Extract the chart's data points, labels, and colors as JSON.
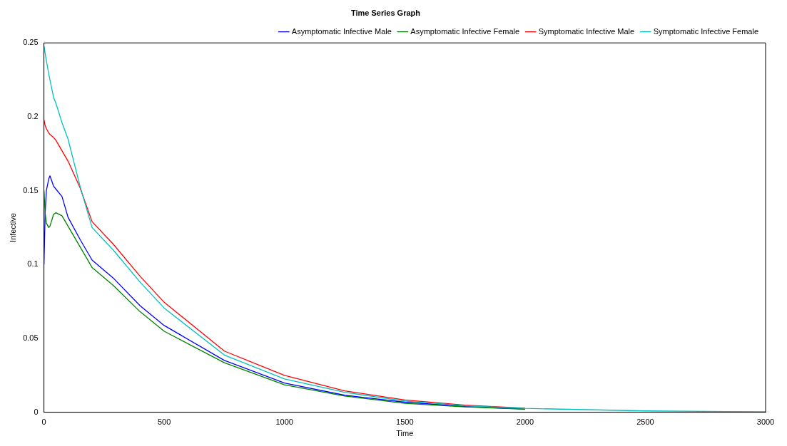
{
  "chart_data": {
    "type": "line",
    "title": "Time Series Graph",
    "xlabel": "Time",
    "ylabel": "Infective",
    "x": [
      0,
      5,
      10,
      20,
      25,
      40,
      50,
      75,
      100,
      150,
      200,
      287,
      400,
      500,
      750,
      1000,
      1250,
      1500,
      1750,
      2000,
      2500,
      3000
    ],
    "series": [
      {
        "name": "Asymptomatic Infective Male",
        "color": "#0000ff",
        "values": [
          0.1,
          0.135,
          0.15,
          0.158,
          0.16,
          0.153,
          0.151,
          0.146,
          0.132,
          0.117,
          0.103,
          0.091,
          0.072,
          0.0587,
          0.0351,
          0.0198,
          0.0115,
          0.0068,
          0.0039,
          0.0022,
          null,
          null
        ]
      },
      {
        "name": "Asymptomatic Infective Female",
        "color": "#008000",
        "values": [
          0.15,
          0.135,
          0.128,
          0.125,
          0.126,
          0.134,
          0.135,
          0.133,
          0.126,
          0.112,
          0.098,
          0.086,
          0.068,
          0.0548,
          0.0335,
          0.0186,
          0.011,
          0.006,
          0.0036,
          0.002,
          null,
          null
        ]
      },
      {
        "name": "Symptomatic Infective Male",
        "color": "#ff0000",
        "values": [
          0.198,
          0.194,
          0.192,
          0.189,
          0.188,
          0.186,
          0.184,
          0.177,
          0.17,
          0.152,
          0.129,
          0.114,
          0.092,
          0.0744,
          0.0414,
          0.0249,
          0.0145,
          0.0083,
          0.0048,
          0.0028,
          null,
          null
        ]
      },
      {
        "name": "Symptomatic Infective Female",
        "color": "#00bfbf",
        "values": [
          0.248,
          0.243,
          0.238,
          0.229,
          0.225,
          0.213,
          0.209,
          0.196,
          0.185,
          0.153,
          0.125,
          0.11,
          0.088,
          0.0705,
          0.0387,
          0.0225,
          0.0135,
          0.0076,
          0.0044,
          0.0026,
          0.0009,
          0.0003
        ]
      }
    ],
    "xlim": [
      0,
      3000
    ],
    "xticks": [
      0,
      500,
      1000,
      1500,
      2000,
      2500,
      3000
    ],
    "ylim": [
      0,
      0.25
    ],
    "yticks": [
      0,
      0.05,
      0.1,
      0.15,
      0.2,
      0.25
    ],
    "grid": false,
    "legend": "top right",
    "marker": "none",
    "line_style": "solid"
  }
}
